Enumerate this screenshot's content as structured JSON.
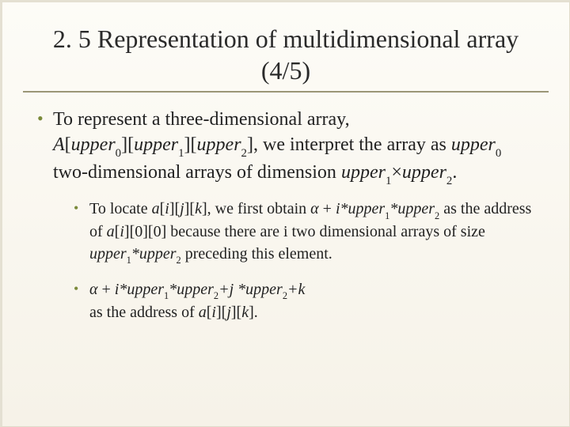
{
  "title_line1": "2. 5 Representation of multidimensional array",
  "title_line2": "(4/5)",
  "bullet1": {
    "t0": "To represent a three-dimensional array, ",
    "A": "A",
    "lb": "[",
    "rb": "]",
    "u": "upper",
    "s0": "0",
    "s1": "1",
    "s2": "2",
    "t1": ", we interpret the array as ",
    "t2": " two-dimensional arrays of dimension ",
    "times": "×",
    "dot": "."
  },
  "sub1": {
    "t0": "To locate ",
    "a": "a",
    "lb": "[",
    "rb": "]",
    "i": "i",
    "j": "j",
    "k": "k",
    "t1": ", we first obtain ",
    "alpha": "α",
    "plus": " + ",
    "star": "*",
    "u": "upper",
    "s1": "1",
    "s2": "2",
    "t2": " as the address of ",
    "z": "0",
    "t3": " because there are i two dimensional arrays of size ",
    "t4": " preceding this element."
  },
  "sub2": {
    "alpha": "α",
    "plus1": " + ",
    "i_star": "i*",
    "u": "upper",
    "s1": "1",
    "s2": "2",
    "star": "*",
    "plus_j": "+j *",
    "plus_k": "+k",
    "t0": "as the address of ",
    "a": "a",
    "lb": "[",
    "rb": "]",
    "i": "i",
    "j": "j",
    "k": "k",
    "dot": "."
  },
  "colors": {
    "accent": "#7a8a3a",
    "rule": "#9b9677",
    "bg_top": "#fdfcf7",
    "bg_bot": "#f6f2e8",
    "text": "#222222"
  }
}
